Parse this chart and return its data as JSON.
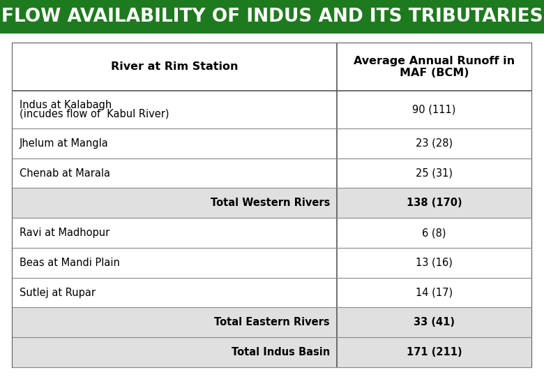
{
  "title": "FLOW AVAILABILITY OF INDUS AND ITS TRIBUTARIES",
  "title_bg_color": "#1e7a1e",
  "title_text_color": "#ffffff",
  "title_fontsize": 19,
  "col_header_1": "River at Rim Station",
  "col_header_2": "Average Annual Runoff in\nMAF (BCM)",
  "rows": [
    {
      "label": "Indus at Kalabagh\n(incudes flow of  Kabul River)",
      "value": "90 (111)",
      "bold": false,
      "align_label": "left",
      "bg": "#ffffff"
    },
    {
      "label": "Jhelum at Mangla",
      "value": "23 (28)",
      "bold": false,
      "align_label": "left",
      "bg": "#ffffff"
    },
    {
      "label": "Chenab at Marala",
      "value": "25 (31)",
      "bold": false,
      "align_label": "left",
      "bg": "#ffffff"
    },
    {
      "label": "Total Western Rivers",
      "value": "138 (170)",
      "bold": true,
      "align_label": "right",
      "bg": "#e0e0e0"
    },
    {
      "label": "Ravi at Madhopur",
      "value": "6 (8)",
      "bold": false,
      "align_label": "left",
      "bg": "#ffffff"
    },
    {
      "label": "Beas at Mandi Plain",
      "value": "13 (16)",
      "bold": false,
      "align_label": "left",
      "bg": "#ffffff"
    },
    {
      "label": "Sutlej at Rupar",
      "value": "14 (17)",
      "bold": false,
      "align_label": "left",
      "bg": "#ffffff"
    },
    {
      "label": "Total Eastern Rivers",
      "value": "33 (41)",
      "bold": true,
      "align_label": "right",
      "bg": "#e0e0e0"
    },
    {
      "label": "Total Indus Basin",
      "value": "171 (211)",
      "bold": true,
      "align_label": "right",
      "bg": "#e0e0e0"
    }
  ],
  "col_split": 0.625,
  "border_color": "#555555",
  "grid_color": "#888888",
  "figsize": [
    7.8,
    5.4
  ],
  "dpi": 100
}
